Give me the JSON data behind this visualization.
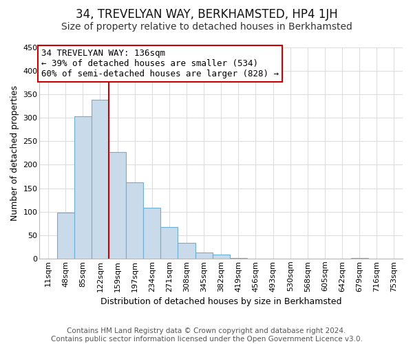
{
  "title": "34, TREVELYAN WAY, BERKHAMSTED, HP4 1JH",
  "subtitle": "Size of property relative to detached houses in Berkhamsted",
  "xlabel": "Distribution of detached houses by size in Berkhamsted",
  "ylabel": "Number of detached properties",
  "bar_labels": [
    "11sqm",
    "48sqm",
    "85sqm",
    "122sqm",
    "159sqm",
    "197sqm",
    "234sqm",
    "271sqm",
    "308sqm",
    "345sqm",
    "382sqm",
    "419sqm",
    "456sqm",
    "493sqm",
    "530sqm",
    "568sqm",
    "605sqm",
    "642sqm",
    "679sqm",
    "716sqm",
    "753sqm"
  ],
  "bar_heights": [
    0,
    98,
    304,
    338,
    227,
    163,
    109,
    68,
    33,
    13,
    8,
    2,
    0,
    0,
    0,
    0,
    0,
    0,
    2,
    0,
    0
  ],
  "bar_color": "#c9daea",
  "bar_edge_color": "#6baed6",
  "vline_x_idx": 3,
  "vline_color": "#cc0000",
  "ylim": [
    0,
    450
  ],
  "yticks": [
    0,
    50,
    100,
    150,
    200,
    250,
    300,
    350,
    400,
    450
  ],
  "annotation_title": "34 TREVELYAN WAY: 136sqm",
  "annotation_line1": "← 39% of detached houses are smaller (534)",
  "annotation_line2": "60% of semi-detached houses are larger (828) →",
  "footer_line1": "Contains HM Land Registry data © Crown copyright and database right 2024.",
  "footer_line2": "Contains public sector information licensed under the Open Government Licence v3.0.",
  "bg_color": "#ffffff",
  "grid_color": "#dddddd",
  "title_fontsize": 12,
  "subtitle_fontsize": 10,
  "axis_label_fontsize": 9,
  "tick_fontsize": 8,
  "annotation_fontsize": 9,
  "footer_fontsize": 7.5
}
